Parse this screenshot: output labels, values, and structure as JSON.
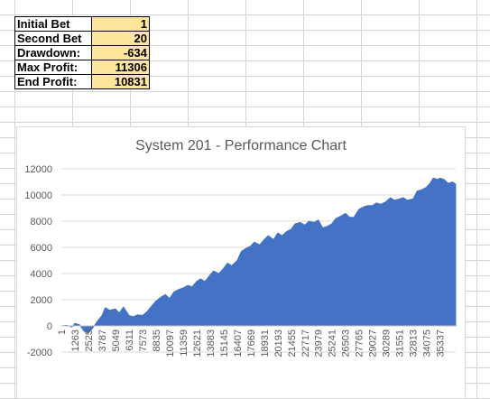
{
  "summary": {
    "rows": [
      {
        "label": "Initial Bet",
        "value": "1"
      },
      {
        "label": "Second Bet",
        "value": "20"
      },
      {
        "label": "Drawdown:",
        "value": "-634"
      },
      {
        "label": "Max Profit:",
        "value": "11306"
      },
      {
        "label": "End Profit:",
        "value": "10831"
      }
    ]
  },
  "colors": {
    "series": "#4472c4",
    "value_cell": "#fde59c",
    "gridline": "#d9d9d9",
    "axis_text": "#595959"
  },
  "chart_data": {
    "type": "area",
    "title": "System 201 - Performance Chart",
    "xlabel": "",
    "ylabel": "",
    "ylim": [
      -2000,
      12000
    ],
    "yticks": [
      -2000,
      0,
      2000,
      4000,
      6000,
      8000,
      10000,
      12000
    ],
    "xlim": [
      1,
      36800
    ],
    "x_tick_labels": [
      "1",
      "1263",
      "2525",
      "3787",
      "5049",
      "6311",
      "7573",
      "8835",
      "10097",
      "11359",
      "12621",
      "13883",
      "15145",
      "16407",
      "17669",
      "18931",
      "20193",
      "21455",
      "22717",
      "23979",
      "25241",
      "26503",
      "27765",
      "29027",
      "30289",
      "31551",
      "32813",
      "34075",
      "35337"
    ],
    "grid": "horizontal",
    "legend": "none",
    "series": [
      {
        "x": [
          1,
          500,
          1000,
          1263,
          1700,
          2100,
          2525,
          2900,
          3300,
          3787,
          4100,
          4500,
          5049,
          5400,
          5800,
          6311,
          6700,
          7100,
          7573,
          8000,
          8400,
          8835,
          9300,
          9700,
          10097,
          10500,
          11000,
          11359,
          11800,
          12200,
          12621,
          13000,
          13400,
          13883,
          14200,
          14700,
          15145,
          15500,
          15900,
          16407,
          16800,
          17200,
          17669,
          18000,
          18500,
          18931,
          19300,
          19800,
          20193,
          20600,
          21000,
          21455,
          21800,
          22300,
          22717,
          23100,
          23600,
          23979,
          24400,
          24800,
          25241,
          25600,
          26100,
          26503,
          26900,
          27300,
          27765,
          28200,
          28600,
          29027,
          29400,
          29800,
          30289,
          30700,
          31100,
          31551,
          31900,
          32300,
          32813,
          33200,
          33600,
          34075,
          34400,
          34700,
          35100,
          35337,
          35700,
          36100,
          36500,
          36800
        ],
        "y": [
          0,
          50,
          -100,
          200,
          100,
          -400,
          -550,
          -200,
          300,
          800,
          1400,
          1200,
          1300,
          1000,
          1450,
          800,
          700,
          850,
          800,
          1100,
          1500,
          1900,
          2200,
          2400,
          2100,
          2600,
          2800,
          2900,
          3100,
          3000,
          3400,
          3600,
          3400,
          3900,
          4200,
          4000,
          4400,
          4800,
          4600,
          5000,
          5700,
          5900,
          6100,
          6400,
          6200,
          6600,
          6900,
          6600,
          7100,
          6900,
          7200,
          7400,
          7800,
          7900,
          7700,
          8000,
          7900,
          8100,
          7500,
          7600,
          7800,
          8200,
          8400,
          8600,
          8300,
          8300,
          8900,
          9100,
          9200,
          9200,
          9400,
          9300,
          9500,
          9800,
          9600,
          9700,
          9800,
          9600,
          9700,
          10300,
          10400,
          10600,
          10900,
          11306,
          11200,
          11300,
          11200,
          10900,
          11000,
          10831
        ]
      }
    ]
  }
}
